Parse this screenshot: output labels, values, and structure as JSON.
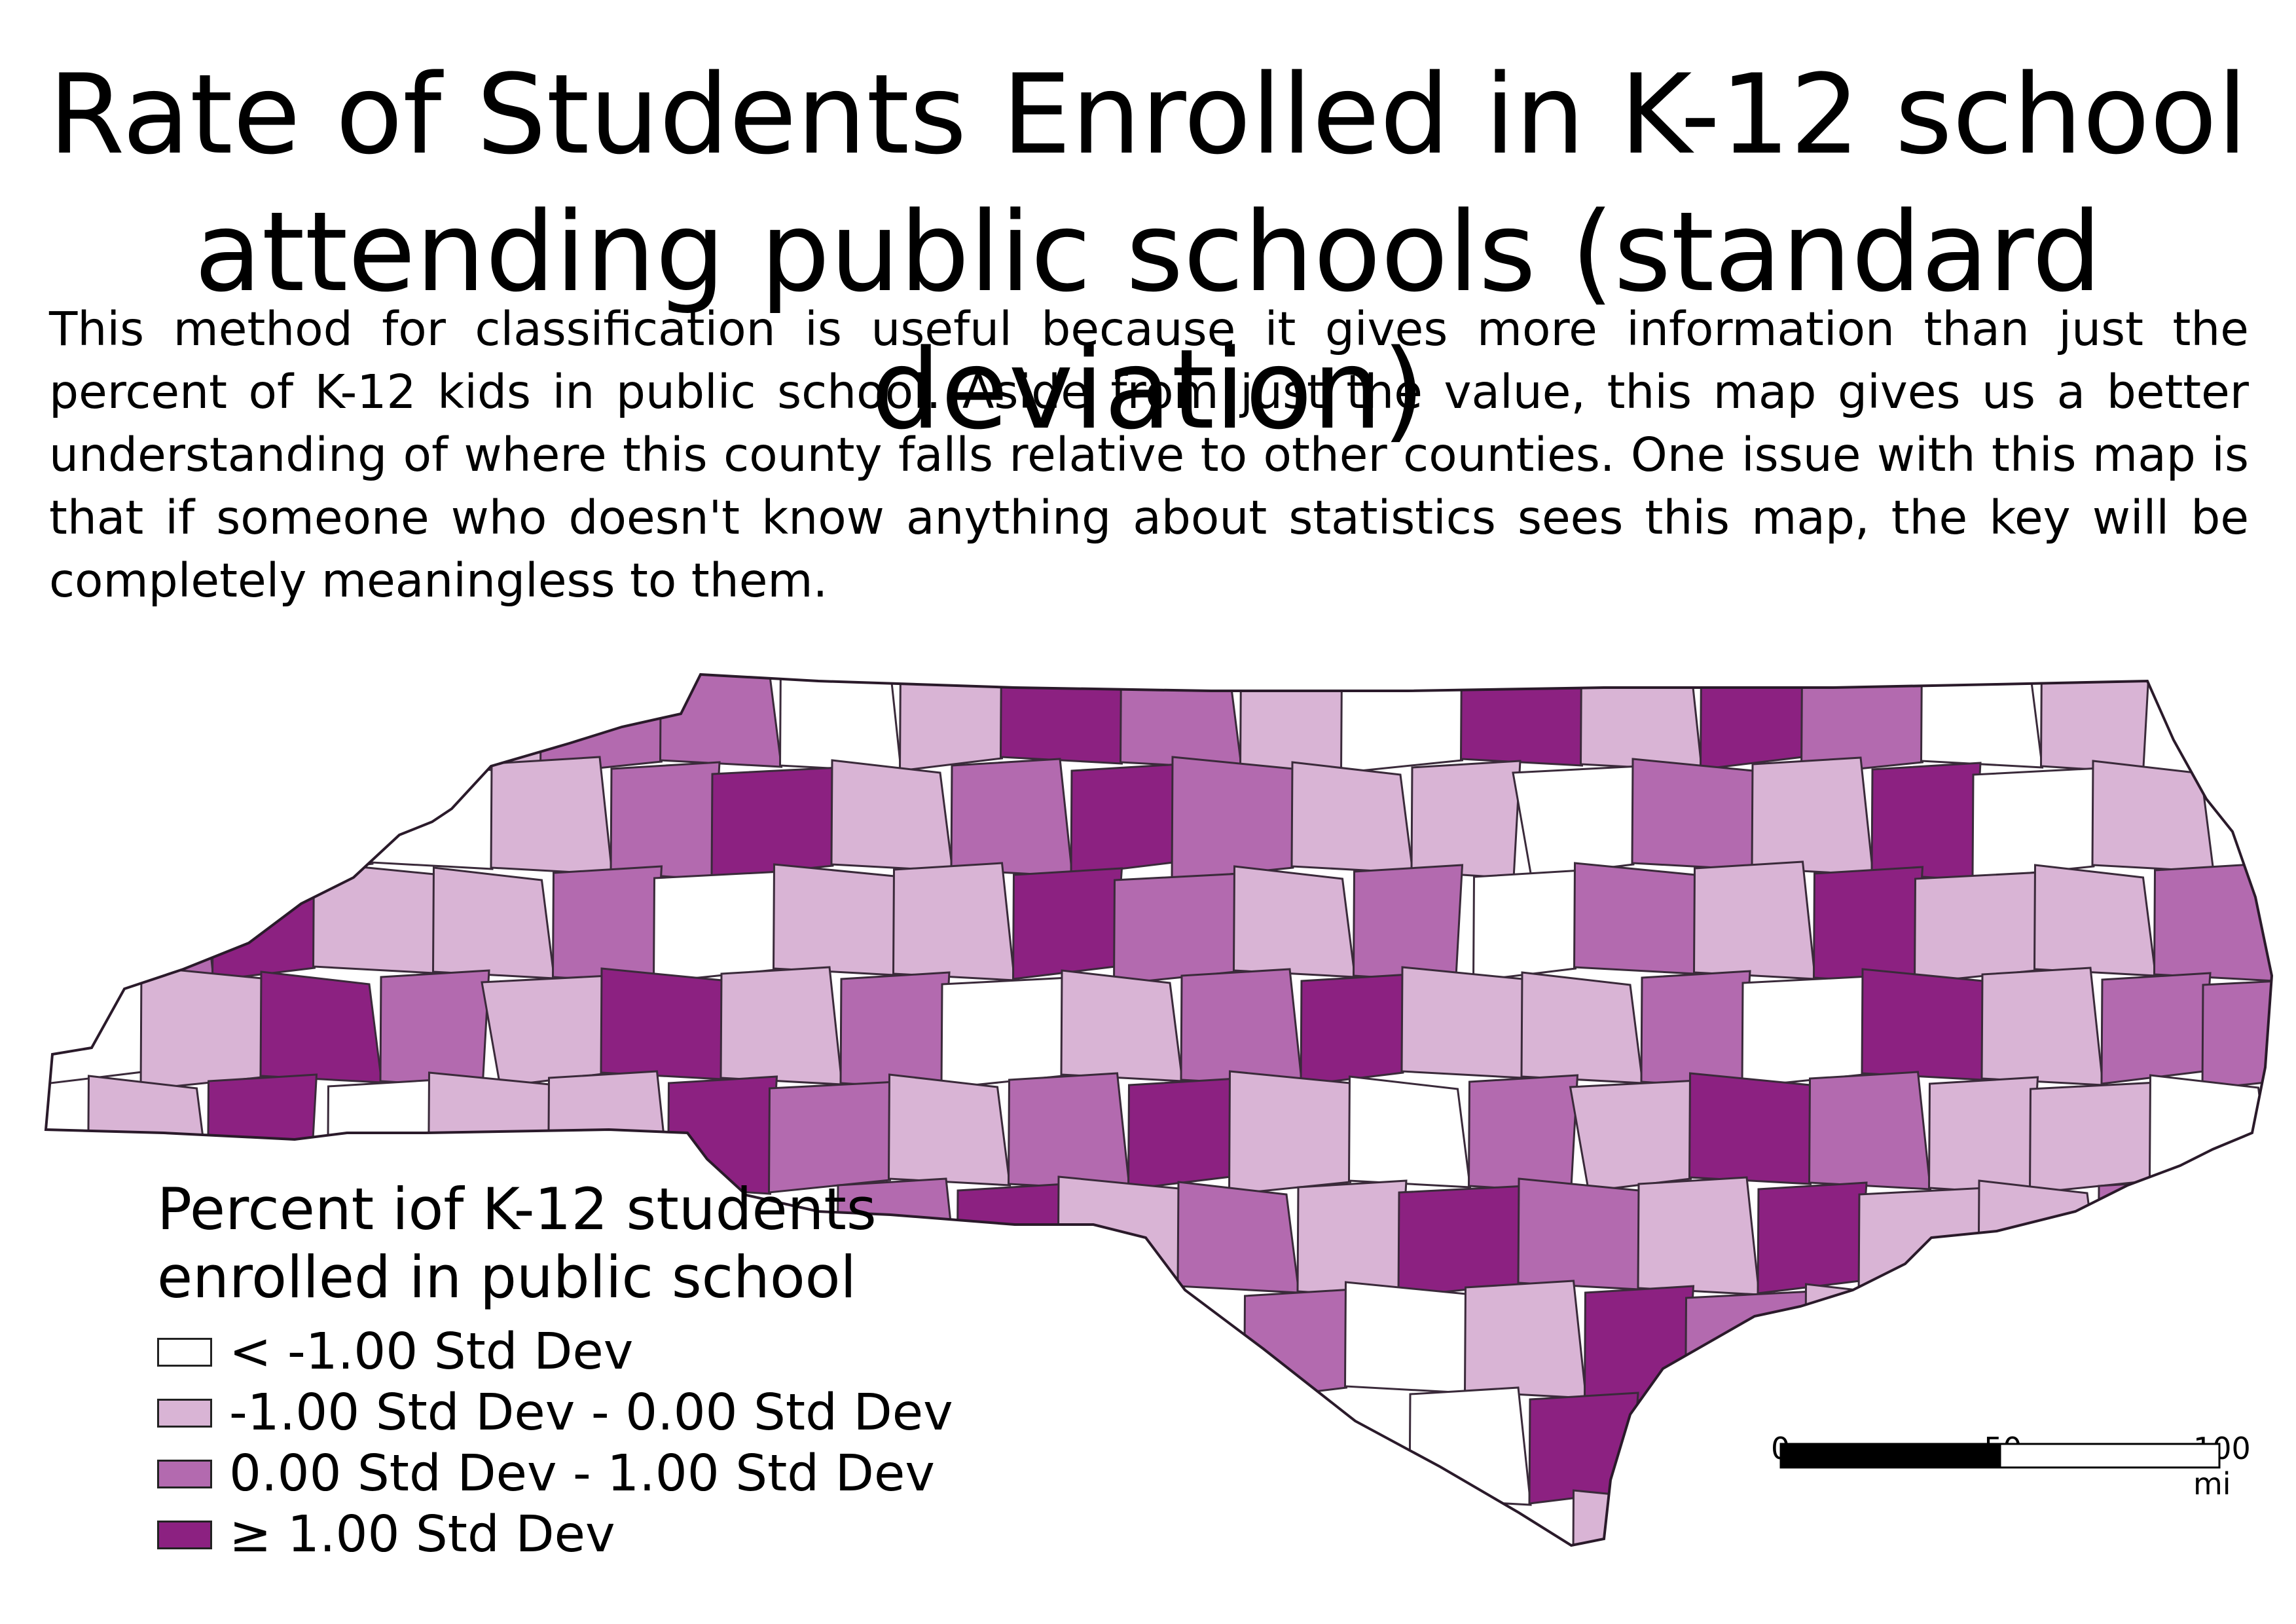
{
  "title_line1": "Rate of Students Enrolled in K-12 school",
  "title_line2": "attending public schools (standard deviation)",
  "description": "This method for classification is useful because it gives more information than just the percent of K-12 kids in public school. Aside from just the value, this map gives us a better understanding of where this county falls relative to other counties. One issue with this map is that if someone who doesn't know anything about statistics sees this map, the key will be completely meaningless to them.",
  "legend": {
    "title_line1": "Percent iof K-12 students",
    "title_line2": "enrolled in public school",
    "classes": [
      {
        "label": "<  -1.00 Std Dev",
        "color": "#ffffff"
      },
      {
        "label": " -1.00 Std Dev -  0.00 Std Dev",
        "color": "#d9b4d5"
      },
      {
        "label": " 0.00 Std Dev -  1.00 Std Dev",
        "color": "#b36aaf"
      },
      {
        "label": "≥  1.00 Std Dev",
        "color": "#8c2181"
      }
    ]
  },
  "scale_bar": {
    "labels": [
      "0",
      "50",
      "100 mi"
    ]
  },
  "region_name": "North Carolina",
  "counties_class": [
    1,
    2,
    2,
    0,
    1,
    3,
    2,
    1,
    0,
    3,
    1,
    3,
    2,
    0,
    1,
    2,
    0,
    1,
    2,
    3,
    1,
    2,
    3,
    2,
    1,
    1,
    0,
    2,
    1,
    3,
    0,
    1,
    2,
    3,
    1,
    1,
    2,
    0,
    1,
    1,
    3,
    2,
    1,
    2,
    0,
    2,
    1,
    3,
    1,
    1,
    2,
    0,
    1,
    3,
    2,
    1,
    3,
    1,
    2,
    0,
    1,
    2,
    3,
    1,
    1,
    2,
    0,
    3,
    1,
    2,
    2,
    1,
    3,
    0,
    1,
    1,
    3,
    2,
    1,
    2,
    3,
    1,
    0,
    2,
    1,
    3,
    2,
    1,
    1,
    0,
    2,
    3,
    1,
    2,
    1,
    3,
    2,
    1,
    3,
    1
  ]
}
